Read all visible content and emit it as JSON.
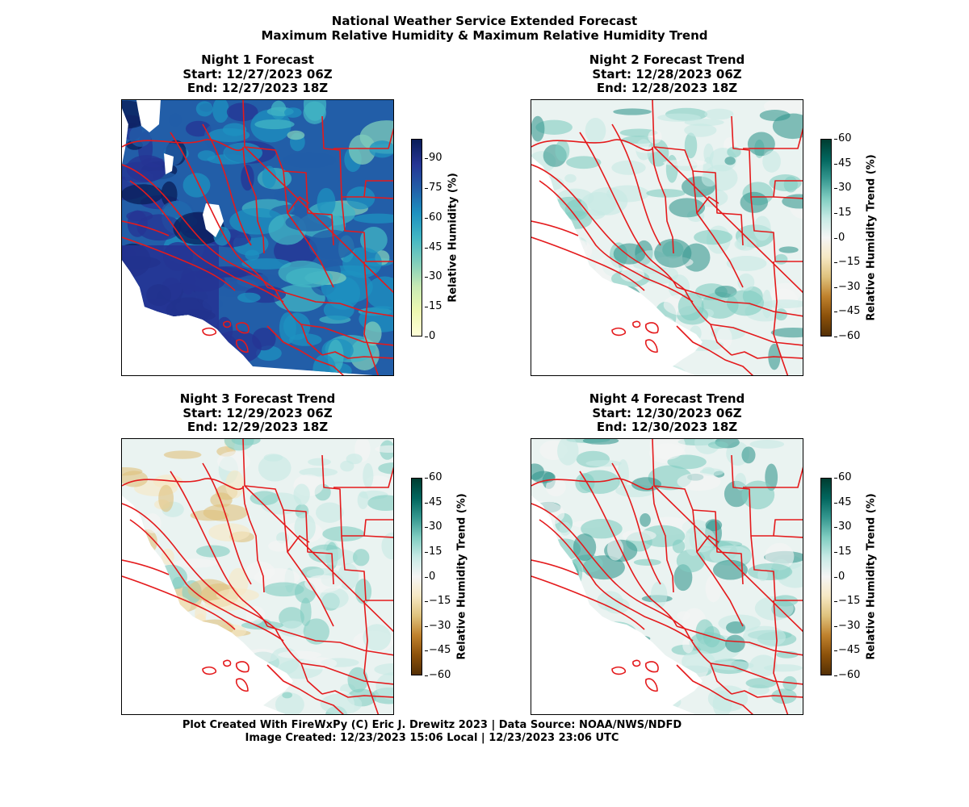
{
  "figure": {
    "title_line1": "National Weather Service Extended Forecast",
    "title_line2": "Maximum Relative Humidity & Maximum Relative Humidity Trend",
    "credit_line1": "Plot Created With FireWxPy (C) Eric J. Drewitz 2023 | Data Source: NOAA/NWS/NDFD",
    "credit_line2": "Image Created: 12/23/2023 15:06 Local | 12/23/2023 23:06 UTC"
  },
  "colors": {
    "boundary": "#e41a1c",
    "ocean": "#ffffff",
    "rh_scale": [
      "#ffffd9",
      "#edf8b1",
      "#c7e9b4",
      "#7fcdbb",
      "#41b6c4",
      "#1d91c0",
      "#225ea8",
      "#253494",
      "#081d58"
    ],
    "trend_scale": [
      "#543005",
      "#8c510a",
      "#bf812d",
      "#dfc27d",
      "#f6e8c3",
      "#f5f5f5",
      "#c7eae5",
      "#80cdc1",
      "#35978f",
      "#01665e",
      "#003c30"
    ]
  },
  "panels": [
    {
      "id": "night1",
      "title": "Night 1 Forecast",
      "start": "Start: 12/27/2023 06Z",
      "end": "End: 12/27/2023 18Z",
      "colorbar_label": "Relative Humidity (%)",
      "ticks": [
        "90",
        "75",
        "60",
        "45",
        "30",
        "15",
        "0"
      ],
      "scale": "rh"
    },
    {
      "id": "night2",
      "title": "Night 2 Forecast Trend",
      "start": "Start: 12/28/2023 06Z",
      "end": "End: 12/28/2023 18Z",
      "colorbar_label": "Relative Humidity Trend (%)",
      "ticks": [
        "60",
        "45",
        "30",
        "15",
        "0",
        "−15",
        "−30",
        "−45",
        "−60"
      ],
      "scale": "trend"
    },
    {
      "id": "night3",
      "title": "Night 3 Forecast Trend",
      "start": "Start: 12/29/2023 06Z",
      "end": "End: 12/29/2023 18Z",
      "colorbar_label": "Relative Humidity Trend (%)",
      "ticks": [
        "60",
        "45",
        "30",
        "15",
        "0",
        "−15",
        "−30",
        "−45",
        "−60"
      ],
      "scale": "trend"
    },
    {
      "id": "night4",
      "title": "Night 4 Forecast Trend",
      "start": "Start: 12/30/2023 06Z",
      "end": "End: 12/30/2023 18Z",
      "colorbar_label": "Relative Humidity Trend (%)",
      "ticks": [
        "60",
        "45",
        "30",
        "15",
        "0",
        "−15",
        "−30",
        "−45",
        "−60"
      ],
      "scale": "trend"
    }
  ]
}
